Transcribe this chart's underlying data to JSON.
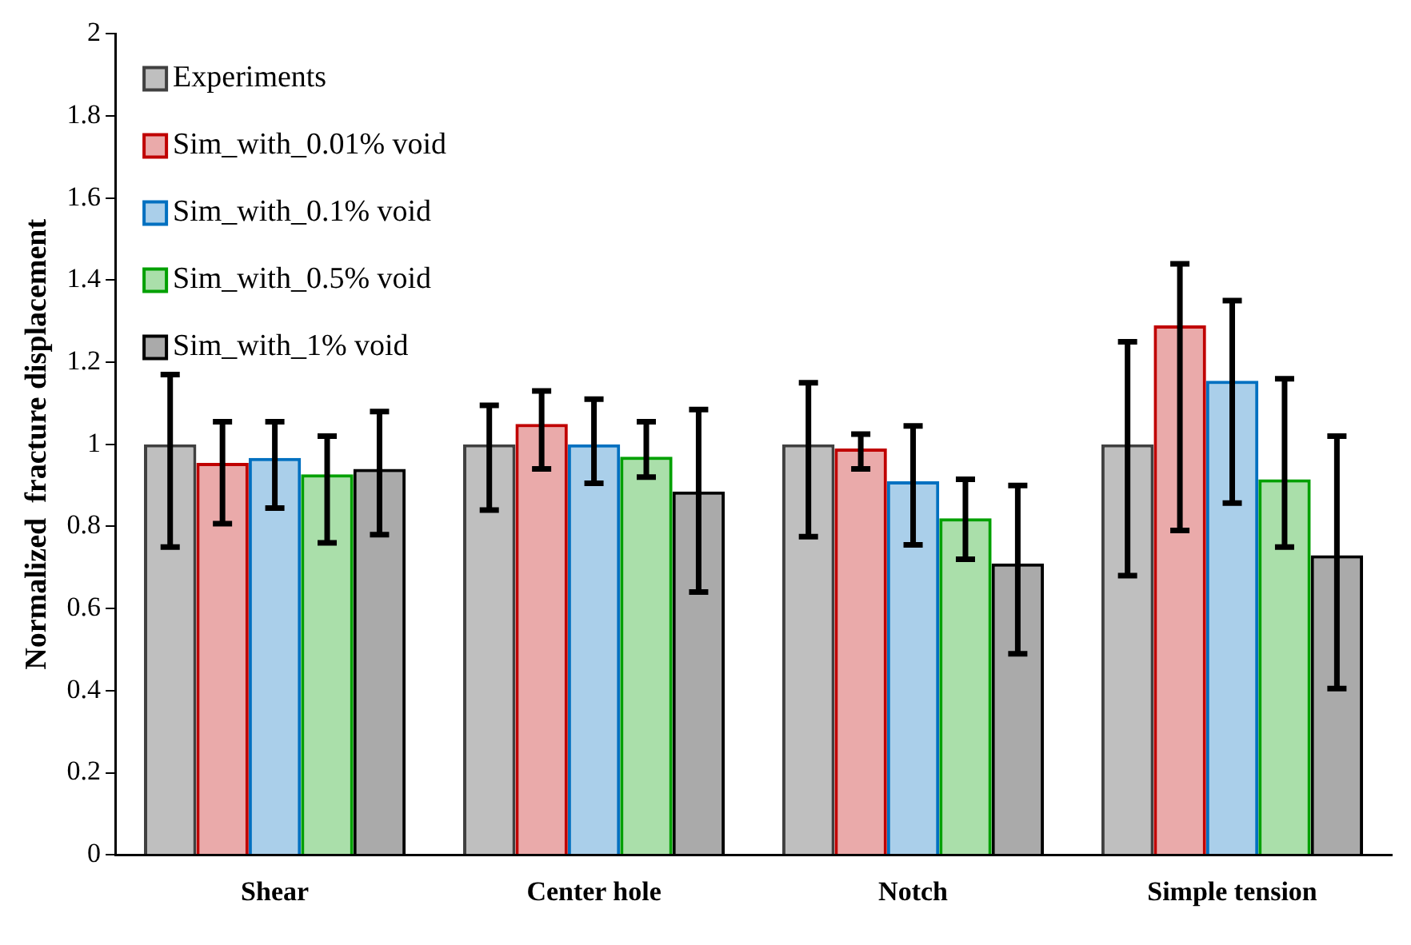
{
  "chart_data": {
    "type": "bar",
    "ylabel": "Normalized  fracture displacement",
    "categories": [
      "Shear",
      "Center hole",
      "Notch",
      "Simple tension"
    ],
    "series": [
      {
        "name": "Experiments",
        "color": "#bfbfbf",
        "values": [
          1.0,
          1.0,
          1.0,
          1.0
        ],
        "errors": [
          [
            0.75,
            1.17
          ],
          [
            0.84,
            1.095
          ],
          [
            0.775,
            1.15
          ],
          [
            0.68,
            1.25
          ]
        ]
      },
      {
        "name": "Sim_with_0.01% void",
        "color": "#c00000",
        "values": [
          0.955,
          1.05,
          0.99,
          1.29
        ],
        "errors": [
          [
            0.807,
            1.055
          ],
          [
            0.94,
            1.13
          ],
          [
            0.94,
            1.025
          ],
          [
            0.79,
            1.44
          ]
        ]
      },
      {
        "name": "Sim_with_0.1% void",
        "color": "#0070c0",
        "values": [
          0.967,
          1.0,
          0.91,
          1.155
        ],
        "errors": [
          [
            0.845,
            1.055
          ],
          [
            0.905,
            1.11
          ],
          [
            0.755,
            1.045
          ],
          [
            0.857,
            1.35
          ]
        ]
      },
      {
        "name": "Sim_with_0.5% void",
        "color": "#00a000",
        "values": [
          0.927,
          0.97,
          0.82,
          0.915
        ],
        "errors": [
          [
            0.76,
            1.02
          ],
          [
            0.92,
            1.055
          ],
          [
            0.72,
            0.915
          ],
          [
            0.75,
            1.16
          ]
        ]
      },
      {
        "name": "Sim_with_1% void",
        "color": "#000000",
        "values": [
          0.94,
          0.885,
          0.71,
          0.73
        ],
        "errors": [
          [
            0.78,
            1.08
          ],
          [
            0.64,
            1.085
          ],
          [
            0.49,
            0.9
          ],
          [
            0.405,
            1.02
          ]
        ]
      }
    ],
    "ylim": [
      0,
      2
    ],
    "yticks": [
      0,
      0.2,
      0.4,
      0.6,
      0.8,
      1,
      1.2,
      1.4,
      1.6,
      1.8,
      2
    ],
    "grid": false,
    "legend": "top left"
  }
}
